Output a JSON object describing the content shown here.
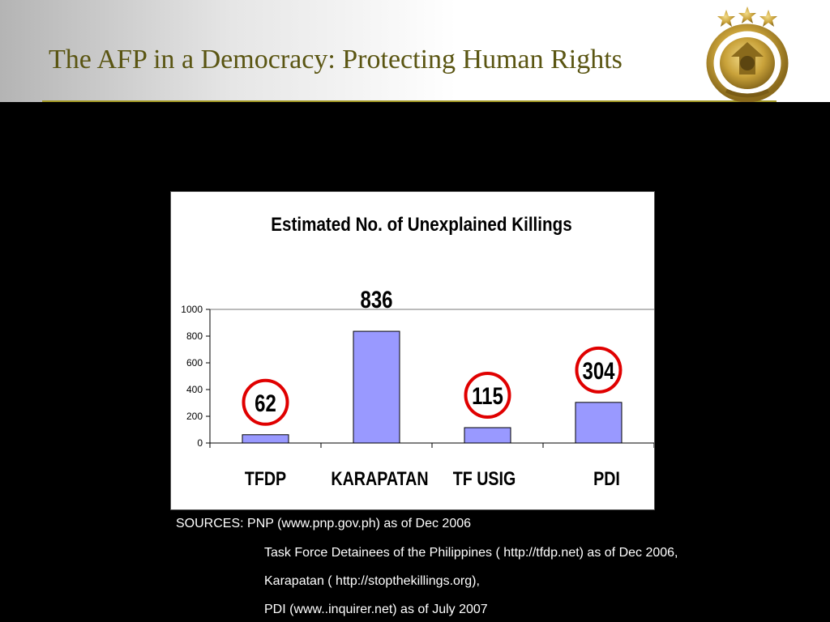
{
  "slide": {
    "title": "The AFP in a Democracy: Protecting Human Rights",
    "logo": "afp-gold-laurel-emblem",
    "colors": {
      "title": "#5a5512",
      "rule": "#a39a26",
      "background": "#000000",
      "bar_fill": "#9999ff",
      "circle": "#e00000"
    }
  },
  "chart_data": {
    "type": "bar",
    "title": "Estimated No. of Unexplained Killings",
    "categories": [
      "TFDP",
      "KARAPATAN",
      "TF USIG",
      "PDI"
    ],
    "values": [
      62,
      836,
      115,
      304
    ],
    "value_labels": [
      "62",
      "836",
      "115",
      "304"
    ],
    "circled": [
      true,
      false,
      true,
      true
    ],
    "ylim": [
      0,
      1000
    ],
    "yticks": [
      0,
      200,
      400,
      600,
      800,
      1000
    ],
    "ytick_labels": [
      "0",
      "200",
      "400",
      "600",
      "800",
      "1000"
    ],
    "xlabel": "",
    "ylabel": "",
    "grid": true,
    "legend": "none"
  },
  "sources": {
    "lines": [
      "SOURCES: PNP (www.pnp.gov.ph) as of Dec 2006",
      "Task Force Detainees of the Philippines ( http://tfdp.net) as of Dec 2006,",
      "Karapatan ( http://stopthekillings.org),",
      "PDI (www..inquirer.net) as of July 2007"
    ]
  }
}
